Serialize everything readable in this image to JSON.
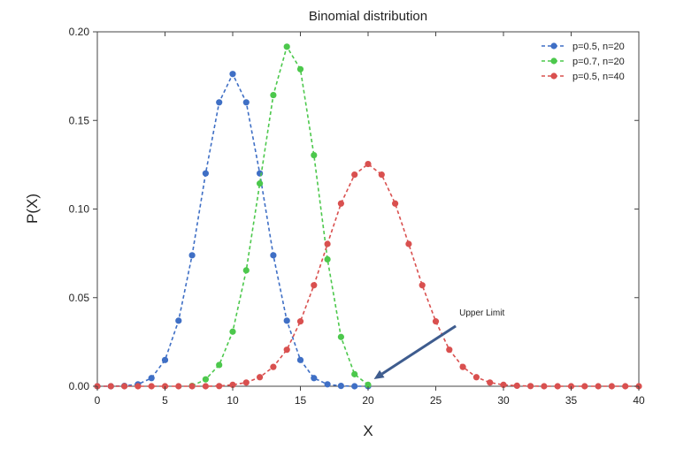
{
  "chart_data": {
    "type": "line",
    "title": "Binomial distribution",
    "xlabel": "X",
    "ylabel": "P(X)",
    "xlim": [
      0,
      40
    ],
    "ylim": [
      0,
      0.2
    ],
    "x_ticks": [
      0,
      5,
      10,
      15,
      20,
      25,
      30,
      35,
      40
    ],
    "y_ticks": [
      0.0,
      0.05,
      0.1,
      0.15,
      0.2
    ],
    "x_tick_labels": [
      "0",
      "5",
      "10",
      "15",
      "20",
      "25",
      "30",
      "35",
      "40"
    ],
    "y_tick_labels": [
      "0.00",
      "0.05",
      "0.10",
      "0.15",
      "0.20"
    ],
    "grid": false,
    "legend_position": "top-right",
    "series": [
      {
        "name": "p=0.5, n=20",
        "color": "#3f6fc5",
        "x": [
          0,
          1,
          2,
          3,
          4,
          5,
          6,
          7,
          8,
          9,
          10,
          11,
          12,
          13,
          14,
          15,
          16,
          17,
          18,
          19,
          20
        ],
        "y": [
          0.0,
          0.0,
          0.0002,
          0.0011,
          0.0046,
          0.0148,
          0.037,
          0.0739,
          0.1201,
          0.1602,
          0.1762,
          0.1602,
          0.1201,
          0.0739,
          0.037,
          0.0148,
          0.0046,
          0.0011,
          0.0002,
          0.0,
          0.0
        ]
      },
      {
        "name": "p=0.7, n=20",
        "color": "#4cc84c",
        "x": [
          7,
          8,
          9,
          10,
          11,
          12,
          13,
          14,
          15,
          16,
          17,
          18,
          19,
          20
        ],
        "y": [
          0.0002,
          0.0039,
          0.012,
          0.0308,
          0.0654,
          0.1144,
          0.1643,
          0.1916,
          0.1789,
          0.1304,
          0.0716,
          0.0278,
          0.0068,
          0.0008
        ]
      },
      {
        "name": "p=0.5, n=40",
        "color": "#d9504f",
        "x": [
          0,
          1,
          2,
          3,
          4,
          5,
          6,
          7,
          8,
          9,
          10,
          11,
          12,
          13,
          14,
          15,
          16,
          17,
          18,
          19,
          20,
          21,
          22,
          23,
          24,
          25,
          26,
          27,
          28,
          29,
          30,
          31,
          32,
          33,
          34,
          35,
          36,
          37,
          38,
          39,
          40
        ],
        "y": [
          0,
          0,
          0,
          0,
          0,
          0,
          0,
          0,
          0,
          0.0001,
          0.0008,
          0.0021,
          0.0051,
          0.0109,
          0.0206,
          0.0366,
          0.057,
          0.0803,
          0.1031,
          0.1194,
          0.1254,
          0.1194,
          0.1031,
          0.0803,
          0.057,
          0.0366,
          0.0206,
          0.0109,
          0.0051,
          0.0021,
          0.0008,
          0.0003,
          0.0001,
          0,
          0,
          0,
          0,
          0,
          0,
          0,
          0
        ]
      }
    ],
    "annotation": {
      "text": "Upper Limit",
      "x": 20.3,
      "y": 0.003,
      "text_x": 27,
      "text_y": 0.036
    }
  }
}
